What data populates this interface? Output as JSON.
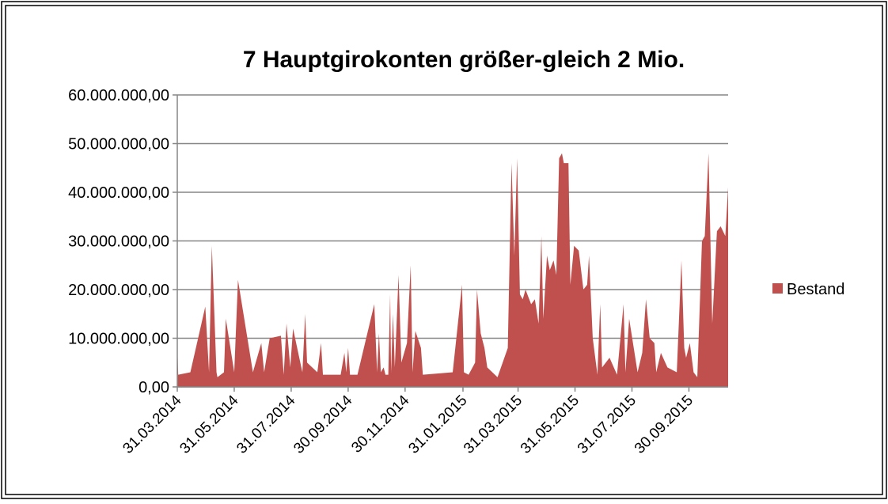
{
  "chart_data": {
    "type": "area",
    "title": "7 Hauptgirokonten größer-gleich 2 Mio.",
    "x": [
      "31.03.2014",
      "01.04.2014",
      "14.04.2014",
      "30.04.2014",
      "04.05.2014",
      "07.05.2014",
      "12.05.2014",
      "13.05.2014",
      "20.05.2014",
      "22.05.2014",
      "31.05.2014",
      "04.06.2014",
      "20.06.2014",
      "29.06.2014",
      "02.07.2014",
      "08.07.2014",
      "20.07.2014",
      "23.07.2014",
      "26.07.2014",
      "30.07.2014",
      "02.08.2014",
      "12.08.2014",
      "15.08.2014",
      "17.08.2014",
      "28.08.2014",
      "01.09.2014",
      "03.09.2014",
      "22.09.2014",
      "26.09.2014",
      "28.09.2014",
      "30.09.2014",
      "02.10.2014",
      "10.10.2014",
      "28.10.2014",
      "31.10.2014",
      "02.11.2014",
      "04.11.2014",
      "07.11.2014",
      "09.11.2014",
      "12.11.2014",
      "14.11.2014",
      "15.11.2014",
      "17.11.2014",
      "19.11.2014",
      "23.11.2014",
      "26.11.2014",
      "02.12.2014",
      "06.12.2014",
      "08.12.2014",
      "11.12.2014",
      "17.12.2014",
      "19.12.2014",
      "20.01.2015",
      "30.01.2015",
      "01.02.2015",
      "06.02.2015",
      "13.02.2015",
      "15.02.2015",
      "19.02.2015",
      "23.02.2015",
      "26.02.2015",
      "09.03.2015",
      "20.03.2015",
      "24.03.2015",
      "27.03.2015",
      "30.03.2015",
      "02.04.2015",
      "05.04.2015",
      "08.04.2015",
      "14.04.2015",
      "18.04.2015",
      "22.04.2015",
      "25.04.2015",
      "27.04.2015",
      "01.05.2015",
      "04.05.2015",
      "08.05.2015",
      "11.05.2015",
      "14.05.2015",
      "17.05.2015",
      "19.05.2015",
      "24.05.2015",
      "26.05.2015",
      "30.05.2015",
      "04.06.2015",
      "09.06.2015",
      "13.06.2015",
      "15.06.2015",
      "19.06.2015",
      "24.06.2015",
      "27.06.2015",
      "29.06.2015",
      "07.07.2015",
      "15.07.2015",
      "22.07.2015",
      "24.07.2015",
      "28.07.2015",
      "06.08.2015",
      "11.08.2015",
      "15.08.2015",
      "19.08.2015",
      "24.08.2015",
      "26.08.2015",
      "31.08.2015",
      "07.09.2015",
      "17.09.2015",
      "22.09.2015",
      "25.09.2015",
      "27.09.2015",
      "01.10.2015",
      "05.10.2015",
      "09.10.2015",
      "14.10.2015",
      "17.10.2015",
      "21.10.2015",
      "25.10.2015",
      "30.10.2015",
      "03.11.2015",
      "08.11.2015",
      "11.11.2015"
    ],
    "series": [
      {
        "name": "Bestand",
        "color": "#c0504d",
        "values": [
          9000000,
          2500000,
          3000000,
          16500000,
          3000000,
          29000000,
          3000000,
          2000000,
          3000000,
          14000000,
          3000000,
          22000000,
          3000000,
          9000000,
          3000000,
          10000000,
          10500000,
          2500000,
          13000000,
          4000000,
          12000000,
          3000000,
          15000000,
          5000000,
          3000000,
          9000000,
          2500000,
          2500000,
          7000000,
          3000000,
          8000000,
          2500000,
          2500000,
          17000000,
          3000000,
          11000000,
          3000000,
          4000000,
          2500000,
          2500000,
          19000000,
          3000000,
          15000000,
          4000000,
          23000000,
          5000000,
          9000000,
          25000000,
          3000000,
          11500000,
          8000000,
          2500000,
          3000000,
          21000000,
          3000000,
          2500000,
          5000000,
          20000000,
          11000000,
          8000000,
          4000000,
          2000000,
          8000000,
          46000000,
          27000000,
          47000000,
          19000000,
          18000000,
          20000000,
          17000000,
          18000000,
          13000000,
          31000000,
          14000000,
          27000000,
          24000000,
          26000000,
          23000000,
          47000000,
          48000000,
          46000000,
          46000000,
          21000000,
          29000000,
          28000000,
          20000000,
          21000000,
          27000000,
          10000000,
          2500000,
          17000000,
          4000000,
          6000000,
          2500000,
          17000000,
          3000000,
          14000000,
          3000000,
          7000000,
          18000000,
          10000000,
          9000000,
          3000000,
          7000000,
          4000000,
          3000000,
          26000000,
          8000000,
          6000000,
          9000000,
          3000000,
          2000000,
          30000000,
          31000000,
          48000000,
          13000000,
          32000000,
          33000000,
          31000000,
          41000000
        ]
      }
    ],
    "xlim": [
      "31.03.2014",
      "11.11.2015"
    ],
    "xticks": [
      "31.03.2014",
      "31.05.2014",
      "31.07.2014",
      "30.09.2014",
      "30.11.2014",
      "31.01.2015",
      "31.03.2015",
      "31.05.2015",
      "31.07.2015",
      "30.09.2015"
    ],
    "ylim": [
      0,
      60000000
    ],
    "yticks": [
      {
        "value": 0,
        "label": "0,00"
      },
      {
        "value": 10000000,
        "label": "10.000.000,00"
      },
      {
        "value": 20000000,
        "label": "20.000.000,00"
      },
      {
        "value": 30000000,
        "label": "30.000.000,00"
      },
      {
        "value": 40000000,
        "label": "40.000.000,00"
      },
      {
        "value": 50000000,
        "label": "50.000.000,00"
      },
      {
        "value": 60000000,
        "label": "60.000.000,00"
      }
    ],
    "grid": true,
    "legend": "right"
  }
}
